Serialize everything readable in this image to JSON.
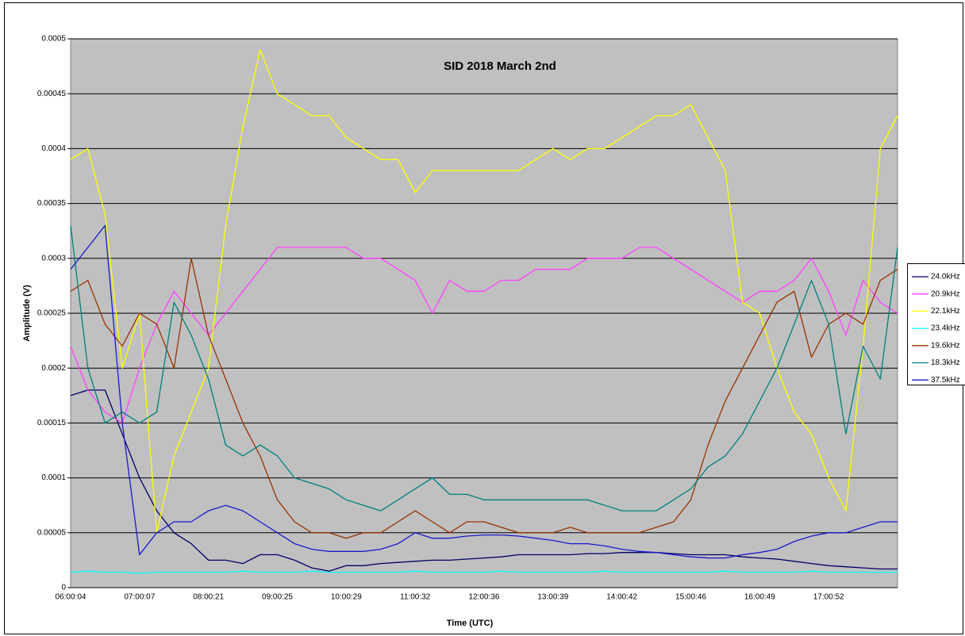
{
  "chart_data": {
    "type": "line",
    "title": "SID 2018 March 2nd",
    "xlabel": "Time (UTC)",
    "ylabel": "Amplitude (V)",
    "categories": [
      "06:00:04",
      null,
      null,
      null,
      "07:00:07",
      null,
      null,
      null,
      "08:00:21",
      null,
      null,
      null,
      "09:00:25",
      null,
      null,
      null,
      "10:00:29",
      null,
      null,
      null,
      "11:00:32",
      null,
      null,
      null,
      "12:00:36",
      null,
      null,
      null,
      "13:00:39",
      null,
      null,
      null,
      "14:00:42",
      null,
      null,
      null,
      "15:00:46",
      null,
      null,
      null,
      "16:00:49",
      null,
      null,
      null,
      "17:00:52",
      null,
      null,
      null,
      null
    ],
    "ylim": [
      0,
      0.0005
    ],
    "yticks": [
      0,
      5e-05,
      0.0001,
      0.00015,
      0.0002,
      0.00025,
      0.0003,
      0.00035,
      0.0004,
      0.00045,
      0.0005
    ],
    "grid": true,
    "legend": "right",
    "series": [
      {
        "name": "24.0kHz",
        "color": "#000066",
        "values": [
          0.000175,
          0.00018,
          0.00018,
          0.00014,
          0.0001,
          7e-05,
          5e-05,
          4e-05,
          2.5e-05,
          2.5e-05,
          2.2e-05,
          3e-05,
          3e-05,
          2.5e-05,
          1.8e-05,
          1.5e-05,
          2e-05,
          2e-05,
          2.2e-05,
          2.3e-05,
          2.4e-05,
          2.5e-05,
          2.5e-05,
          2.6e-05,
          2.7e-05,
          2.8e-05,
          3e-05,
          3e-05,
          3e-05,
          3e-05,
          3.1e-05,
          3.1e-05,
          3.2e-05,
          3.2e-05,
          3.2e-05,
          3.1e-05,
          3e-05,
          3e-05,
          3e-05,
          2.8e-05,
          2.7e-05,
          2.6e-05,
          2.4e-05,
          2.2e-05,
          2e-05,
          1.9e-05,
          1.8e-05,
          1.7e-05,
          1.7e-05
        ]
      },
      {
        "name": "20.9kHz",
        "color": "#ff40ff",
        "values": [
          0.00022,
          0.00018,
          0.00016,
          0.00015,
          0.0002,
          0.00024,
          0.00027,
          0.00025,
          0.00023,
          0.00025,
          0.00027,
          0.00029,
          0.00031,
          0.00031,
          0.00031,
          0.00031,
          0.00031,
          0.0003,
          0.0003,
          0.00029,
          0.00028,
          0.00025,
          0.00028,
          0.00027,
          0.00027,
          0.00028,
          0.00028,
          0.00029,
          0.00029,
          0.00029,
          0.0003,
          0.0003,
          0.0003,
          0.00031,
          0.00031,
          0.0003,
          0.00029,
          0.00028,
          0.00027,
          0.00026,
          0.00027,
          0.00027,
          0.00028,
          0.0003,
          0.00027,
          0.00023,
          0.00028,
          0.00026,
          0.00025
        ]
      },
      {
        "name": "22.1kHz",
        "color": "#ffff00",
        "values": [
          0.00039,
          0.0004,
          0.00034,
          0.0002,
          0.00025,
          5e-05,
          0.00012,
          0.00016,
          0.0002,
          0.00033,
          0.00042,
          0.00049,
          0.00045,
          0.00044,
          0.00043,
          0.00043,
          0.00041,
          0.0004,
          0.00039,
          0.00039,
          0.00036,
          0.00038,
          0.00038,
          0.00038,
          0.00038,
          0.00038,
          0.00038,
          0.00039,
          0.0004,
          0.00039,
          0.0004,
          0.0004,
          0.00041,
          0.00042,
          0.00043,
          0.00043,
          0.00044,
          0.00041,
          0.00038,
          0.00026,
          0.00025,
          0.0002,
          0.00016,
          0.00014,
          0.0001,
          7e-05,
          0.00022,
          0.0004,
          0.00043
        ]
      },
      {
        "name": "23.4kHz",
        "color": "#00ffff",
        "values": [
          1.4e-05,
          1.5e-05,
          1.4e-05,
          1.4e-05,
          1.3e-05,
          1.4e-05,
          1.4e-05,
          1.4e-05,
          1.4e-05,
          1.4e-05,
          1.5e-05,
          1.4e-05,
          1.4e-05,
          1.4e-05,
          1.5e-05,
          1.4e-05,
          1.4e-05,
          1.4e-05,
          1.4e-05,
          1.4e-05,
          1.5e-05,
          1.4e-05,
          1.4e-05,
          1.4e-05,
          1.4e-05,
          1.5e-05,
          1.4e-05,
          1.4e-05,
          1.4e-05,
          1.4e-05,
          1.4e-05,
          1.5e-05,
          1.4e-05,
          1.4e-05,
          1.4e-05,
          1.4e-05,
          1.4e-05,
          1.4e-05,
          1.5e-05,
          1.4e-05,
          1.4e-05,
          1.4e-05,
          1.4e-05,
          1.5e-05,
          1.4e-05,
          1.4e-05,
          1.4e-05,
          1.4e-05,
          1.4e-05
        ]
      },
      {
        "name": "19.6kHz",
        "color": "#993300",
        "values": [
          0.00027,
          0.00028,
          0.00024,
          0.00022,
          0.00025,
          0.00024,
          0.0002,
          0.0003,
          0.00023,
          0.00019,
          0.00015,
          0.00012,
          8e-05,
          6e-05,
          5e-05,
          5e-05,
          4.5e-05,
          5e-05,
          5e-05,
          6e-05,
          7e-05,
          6e-05,
          5e-05,
          6e-05,
          6e-05,
          5.5e-05,
          5e-05,
          5e-05,
          5e-05,
          5.5e-05,
          5e-05,
          5e-05,
          5e-05,
          5e-05,
          5.5e-05,
          6e-05,
          8e-05,
          0.00013,
          0.00017,
          0.0002,
          0.00023,
          0.00026,
          0.00027,
          0.00021,
          0.00024,
          0.00025,
          0.00024,
          0.00028,
          0.00029
        ]
      },
      {
        "name": "18.3kHz",
        "color": "#008080",
        "values": [
          0.00033,
          0.0002,
          0.00015,
          0.00016,
          0.00015,
          0.00016,
          0.00026,
          0.00023,
          0.00019,
          0.00013,
          0.00012,
          0.00013,
          0.00012,
          0.0001,
          9.5e-05,
          9e-05,
          8e-05,
          7.5e-05,
          7e-05,
          8e-05,
          9e-05,
          0.0001,
          8.5e-05,
          8.5e-05,
          8e-05,
          8e-05,
          8e-05,
          8e-05,
          8e-05,
          8e-05,
          8e-05,
          7.5e-05,
          7e-05,
          7e-05,
          7e-05,
          8e-05,
          9e-05,
          0.00011,
          0.00012,
          0.00014,
          0.00017,
          0.0002,
          0.00024,
          0.00028,
          0.00024,
          0.00014,
          0.00022,
          0.00019,
          0.00031
        ]
      },
      {
        "name": "37.5kHz",
        "color": "#1a1acc",
        "values": [
          0.00029,
          0.00031,
          0.00033,
          0.00015,
          3e-05,
          5e-05,
          6e-05,
          6e-05,
          7e-05,
          7.5e-05,
          7e-05,
          6e-05,
          5e-05,
          4e-05,
          3.5e-05,
          3.3e-05,
          3.3e-05,
          3.3e-05,
          3.5e-05,
          4e-05,
          5e-05,
          4.5e-05,
          4.5e-05,
          4.7e-05,
          4.8e-05,
          4.8e-05,
          4.7e-05,
          4.5e-05,
          4.3e-05,
          4e-05,
          4e-05,
          3.8e-05,
          3.5e-05,
          3.3e-05,
          3.2e-05,
          3e-05,
          2.8e-05,
          2.7e-05,
          2.7e-05,
          3e-05,
          3.2e-05,
          3.5e-05,
          4.2e-05,
          4.7e-05,
          5e-05,
          5e-05,
          5.5e-05,
          6e-05,
          6e-05
        ]
      }
    ]
  }
}
